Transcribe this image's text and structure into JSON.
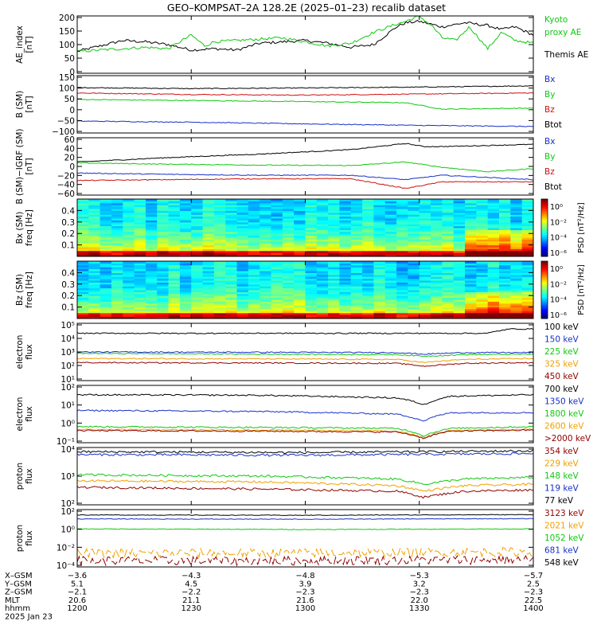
{
  "title": "GEO–KOMPSAT–2A 128.2E (2025–01–23) recalib dataset",
  "colors": {
    "black": "#000000",
    "blue": "#1530c8",
    "green": "#10c810",
    "red": "#d01010",
    "orange": "#f0a000",
    "darkred": "#900000"
  },
  "panels": [
    {
      "id": "ae",
      "ylabel": [
        "AE_index",
        "[nT]"
      ],
      "yticks": [
        "200",
        "150",
        "100",
        "50",
        "0"
      ],
      "yrange": [
        0,
        210
      ],
      "legend": [
        {
          "text": "Kyoto",
          "color": "green"
        },
        {
          "text": "proxy AE",
          "color": "green"
        },
        {
          "text": "Themis AE",
          "color": "black"
        }
      ],
      "chart_data": {
        "type": "line",
        "x_hhmm": [
          "1200",
          "1230",
          "1300",
          "1330",
          "1400"
        ],
        "series": [
          {
            "name": "Themis AE",
            "color": "black",
            "x": [
              0,
              0.05,
              0.1,
              0.15,
              0.2,
              0.25,
              0.3,
              0.35,
              0.4,
              0.45,
              0.5,
              0.55,
              0.6,
              0.65,
              0.7,
              0.72,
              0.75,
              0.8,
              0.85,
              0.9,
              0.93,
              0.96,
              1.0
            ],
            "y": [
              80,
              100,
              120,
              115,
              105,
              85,
              90,
              85,
              110,
              115,
              120,
              110,
              95,
              105,
              170,
              185,
              190,
              170,
              185,
              175,
              160,
              170,
              140
            ]
          },
          {
            "name": "Kyoto proxy AE",
            "color": "green",
            "x": [
              0,
              0.05,
              0.1,
              0.15,
              0.2,
              0.25,
              0.28,
              0.3,
              0.35,
              0.4,
              0.45,
              0.5,
              0.55,
              0.6,
              0.65,
              0.7,
              0.72,
              0.75,
              0.78,
              0.8,
              0.83,
              0.86,
              0.9,
              0.93,
              0.96,
              1.0
            ],
            "y": [
              80,
              85,
              90,
              95,
              90,
              140,
              100,
              115,
              120,
              125,
              130,
              115,
              100,
              110,
              150,
              180,
              190,
              210,
              170,
              130,
              120,
              170,
              90,
              150,
              120,
              110
            ]
          }
        ]
      }
    },
    {
      "id": "bsm",
      "ylabel": [
        "B (SM)",
        "[nT]"
      ],
      "yticks": [
        "150",
        "100",
        "50",
        "0",
        "−50",
        "−100"
      ],
      "yrange": [
        -110,
        155
      ],
      "legend": [
        {
          "text": "Bx",
          "color": "blue"
        },
        {
          "text": "By",
          "color": "green"
        },
        {
          "text": "Bz",
          "color": "red"
        },
        {
          "text": "Btot",
          "color": "black"
        }
      ],
      "chart_data": {
        "type": "line",
        "series": [
          {
            "name": "Btot",
            "color": "black",
            "x": [
              0,
              0.25,
              0.5,
              0.75,
              1.0
            ],
            "y": [
              100,
              95,
              98,
              102,
              108
            ]
          },
          {
            "name": "Bz",
            "color": "red",
            "x": [
              0,
              0.25,
              0.5,
              0.75,
              1.0
            ],
            "y": [
              75,
              68,
              65,
              70,
              75
            ]
          },
          {
            "name": "By",
            "color": "green",
            "x": [
              0,
              0.25,
              0.5,
              0.72,
              0.8,
              1.0
            ],
            "y": [
              45,
              40,
              35,
              30,
              0,
              5
            ]
          },
          {
            "name": "Bx",
            "color": "blue",
            "x": [
              0,
              0.25,
              0.5,
              0.75,
              1.0
            ],
            "y": [
              -55,
              -60,
              -68,
              -75,
              -80
            ]
          }
        ]
      }
    },
    {
      "id": "bres",
      "ylabel": [
        "B (SM)−IGRF (SM)",
        "[nT]"
      ],
      "yticks": [
        "60",
        "40",
        "20",
        "0",
        "−20",
        "−40",
        "−60"
      ],
      "yrange": [
        -65,
        65
      ],
      "legend": [
        {
          "text": "Bx",
          "color": "blue"
        },
        {
          "text": "By",
          "color": "green"
        },
        {
          "text": "Bz",
          "color": "red"
        },
        {
          "text": "Btot",
          "color": "black"
        }
      ],
      "chart_data": {
        "type": "line",
        "series": [
          {
            "name": "Btot",
            "color": "black",
            "x": [
              0,
              0.2,
              0.4,
              0.6,
              0.72,
              0.76,
              0.8,
              1.0
            ],
            "y": [
              10,
              20,
              28,
              38,
              52,
              45,
              45,
              50
            ]
          },
          {
            "name": "By",
            "color": "green",
            "x": [
              0,
              0.2,
              0.4,
              0.6,
              0.72,
              0.8,
              0.9,
              1.0
            ],
            "y": [
              8,
              5,
              3,
              2,
              10,
              -2,
              -12,
              -5
            ]
          },
          {
            "name": "Bx",
            "color": "blue",
            "x": [
              0,
              0.2,
              0.4,
              0.6,
              0.72,
              0.8,
              1.0
            ],
            "y": [
              -15,
              -18,
              -20,
              -20,
              -30,
              -20,
              -30
            ]
          },
          {
            "name": "Bz",
            "color": "red",
            "x": [
              0,
              0.2,
              0.4,
              0.6,
              0.72,
              0.8,
              1.0
            ],
            "y": [
              -32,
              -30,
              -28,
              -28,
              -50,
              -35,
              -35
            ]
          }
        ]
      }
    },
    {
      "id": "bx_spec",
      "ylabel": [
        "Bx (SM)",
        "freq [Hz]"
      ],
      "yticks": [
        "0.4",
        "0.3",
        "0.2",
        "0.1"
      ],
      "yrange": [
        0,
        0.5
      ],
      "cbar_label": "PSD [nT²/Hz]",
      "cbar_ticks": [
        "10⁰",
        "10⁻²",
        "10⁻⁴",
        "10⁻⁶"
      ],
      "chart_data": {
        "type": "heatmap"
      }
    },
    {
      "id": "bz_spec",
      "ylabel": [
        "Bz (SM)",
        "freq [Hz]"
      ],
      "yticks": [
        "0.4",
        "0.3",
        "0.2",
        "0.1"
      ],
      "yrange": [
        0,
        0.5
      ],
      "cbar_label": "PSD [nT²/Hz]",
      "cbar_ticks": [
        "10⁰",
        "10⁻²",
        "10⁻⁴",
        "10⁻⁶"
      ],
      "chart_data": {
        "type": "heatmap"
      }
    },
    {
      "id": "e_low",
      "ylabel": [
        "electron",
        "flux"
      ],
      "yticks": [
        "10⁵",
        "10⁴",
        "10³",
        "10²",
        "10¹"
      ],
      "yrange_log": [
        1,
        5
      ],
      "legend": [
        {
          "text": "100 keV",
          "color": "black"
        },
        {
          "text": "150 keV",
          "color": "blue"
        },
        {
          "text": "225 keV",
          "color": "green"
        },
        {
          "text": "325 keV",
          "color": "orange"
        },
        {
          "text": "450 keV",
          "color": "darkred"
        }
      ],
      "chart_data": {
        "type": "line",
        "yscale": "log",
        "series": [
          {
            "name": "100 keV",
            "color": "black",
            "x": [
              0,
              0.9,
              0.95,
              1.0
            ],
            "y": [
              20000,
              20000,
              40000,
              40000
            ]
          },
          {
            "name": "150 keV",
            "color": "blue",
            "x": [
              0,
              0.4,
              0.7,
              0.76,
              0.85,
              1.0
            ],
            "y": [
              1000,
              950,
              900,
              700,
              900,
              900
            ]
          },
          {
            "name": "225 keV",
            "color": "green",
            "x": [
              0,
              0.4,
              0.7,
              0.76,
              0.85,
              1.0
            ],
            "y": [
              800,
              700,
              650,
              500,
              650,
              700
            ]
          },
          {
            "name": "325 keV",
            "color": "orange",
            "x": [
              0,
              0.4,
              0.7,
              0.76,
              0.85,
              1.0
            ],
            "y": [
              350,
              330,
              300,
              180,
              300,
              350
            ]
          },
          {
            "name": "450 keV",
            "color": "darkred",
            "x": [
              0,
              0.4,
              0.7,
              0.76,
              0.85,
              1.0
            ],
            "y": [
              180,
              170,
              160,
              100,
              160,
              180
            ]
          }
        ]
      }
    },
    {
      "id": "e_high",
      "ylabel": [
        "electron",
        "flux"
      ],
      "yticks": [
        "10²",
        "10¹",
        "10⁰",
        "10⁻¹"
      ],
      "yrange_log": [
        -1.2,
        2
      ],
      "legend": [
        {
          "text": "700 keV",
          "color": "black"
        },
        {
          "text": "1350 keV",
          "color": "blue"
        },
        {
          "text": "1800 keV",
          "color": "green"
        },
        {
          "text": "2600 keV",
          "color": "orange"
        },
        {
          "text": ">2000 keV",
          "color": "darkred"
        }
      ],
      "chart_data": {
        "type": "line",
        "yscale": "log",
        "series": [
          {
            "name": "700 keV",
            "color": "black",
            "x": [
              0,
              0.4,
              0.7,
              0.76,
              0.82,
              1.0
            ],
            "y": [
              30,
              28,
              20,
              8,
              25,
              30
            ]
          },
          {
            "name": "1350 keV",
            "color": "blue",
            "x": [
              0,
              0.4,
              0.7,
              0.76,
              0.82,
              1.0
            ],
            "y": [
              4,
              3.5,
              2.5,
              1,
              3,
              3
            ]
          },
          {
            "name": "1800 keV",
            "color": "green",
            "x": [
              0,
              0.4,
              0.7,
              0.76,
              0.82,
              1.0
            ],
            "y": [
              0.5,
              0.45,
              0.4,
              0.15,
              0.4,
              0.5
            ]
          },
          {
            "name": "2600 keV",
            "color": "orange",
            "x": [
              0,
              0.4,
              0.7,
              0.76,
              0.82,
              1.0
            ],
            "y": [
              0.35,
              0.32,
              0.28,
              0.12,
              0.3,
              0.35
            ]
          },
          {
            "name": ">2000 keV",
            "color": "darkred",
            "x": [
              0,
              0.4,
              0.7,
              0.76,
              0.82,
              1.0
            ],
            "y": [
              0.3,
              0.28,
              0.25,
              0.11,
              0.28,
              0.32
            ]
          }
        ]
      }
    },
    {
      "id": "p_low",
      "ylabel": [
        "proton",
        "flux"
      ],
      "yticks": [
        "10⁴",
        "10³",
        "10²"
      ],
      "yrange_log": [
        1.9,
        4
      ],
      "legend": [
        {
          "text": "354 keV",
          "color": "darkred"
        },
        {
          "text": "229 keV",
          "color": "orange"
        },
        {
          "text": "148 keV",
          "color": "green"
        },
        {
          "text": "119 keV",
          "color": "blue"
        },
        {
          "text": "77 keV",
          "color": "black"
        }
      ],
      "chart_data": {
        "type": "line",
        "yscale": "log",
        "series": [
          {
            "name": "77 keV",
            "color": "black",
            "x": [
              0,
              0.5,
              1.0
            ],
            "y": [
              7000,
              6500,
              7500
            ]
          },
          {
            "name": "119 keV",
            "color": "blue",
            "x": [
              0,
              0.5,
              1.0
            ],
            "y": [
              5500,
              5200,
              6000
            ]
          },
          {
            "name": "148 keV",
            "color": "green",
            "x": [
              0,
              0.4,
              0.7,
              0.76,
              0.85,
              1.0
            ],
            "y": [
              1000,
              900,
              700,
              450,
              700,
              800
            ]
          },
          {
            "name": "229 keV",
            "color": "orange",
            "x": [
              0,
              0.4,
              0.7,
              0.76,
              0.85,
              1.0
            ],
            "y": [
              600,
              550,
              400,
              250,
              400,
              450
            ]
          },
          {
            "name": "354 keV",
            "color": "darkred",
            "x": [
              0,
              0.4,
              0.7,
              0.76,
              0.85,
              1.0
            ],
            "y": [
              350,
              300,
              250,
              150,
              250,
              280
            ]
          }
        ]
      }
    },
    {
      "id": "p_high",
      "ylabel": [
        "proton",
        "flux"
      ],
      "yticks": [
        "10²",
        "10⁰",
        "10⁻²",
        "10⁻⁴"
      ],
      "yrange_log": [
        -4.5,
        3
      ],
      "legend": [
        {
          "text": "3123 keV",
          "color": "darkred"
        },
        {
          "text": "2021 keV",
          "color": "orange"
        },
        {
          "text": "1052 keV",
          "color": "green"
        },
        {
          "text": "681 keV",
          "color": "blue"
        },
        {
          "text": "548 keV",
          "color": "black"
        }
      ],
      "chart_data": {
        "type": "line",
        "yscale": "log",
        "series": [
          {
            "name": "548 keV",
            "color": "black",
            "x": [
              0,
              0.5,
              1.0
            ],
            "y": [
              200,
              180,
              220
            ]
          },
          {
            "name": "681 keV",
            "color": "blue",
            "x": [
              0,
              0.5,
              1.0
            ],
            "y": [
              60,
              55,
              65
            ]
          },
          {
            "name": "1052 keV",
            "color": "green",
            "x": [
              0,
              0.5,
              1.0
            ],
            "y": [
              3,
              2.5,
              3
            ]
          },
          {
            "name": "2021 keV",
            "color": "orange",
            "x": [
              0,
              0.5,
              1.0
            ],
            "y": [
              0.002,
              0.002,
              0.003
            ]
          },
          {
            "name": "3123 keV",
            "color": "darkred",
            "x": [
              0,
              0.5,
              1.0
            ],
            "y": [
              0.0002,
              0.0002,
              0.0003
            ]
          }
        ]
      }
    }
  ],
  "xaxis": {
    "rows": [
      {
        "label": "X–GSM",
        "values": [
          "−3.6",
          "−4.3",
          "−4.8",
          "−5.3",
          "−5.7"
        ]
      },
      {
        "label": "Y–GSM",
        "values": [
          "5.1",
          "4.5",
          "3.9",
          "3.2",
          "2.5"
        ]
      },
      {
        "label": "Z–GSM",
        "values": [
          "−2.1",
          "−2.2",
          "−2.3",
          "−2.3",
          "−2.3"
        ]
      },
      {
        "label": "MLT",
        "values": [
          "20.6",
          "21.1",
          "21.6",
          "22.0",
          "22.5"
        ]
      },
      {
        "label": "hhmm",
        "values": [
          "1200",
          "1230",
          "1300",
          "1330",
          "1400"
        ]
      }
    ],
    "date": "2025 Jan 23"
  }
}
